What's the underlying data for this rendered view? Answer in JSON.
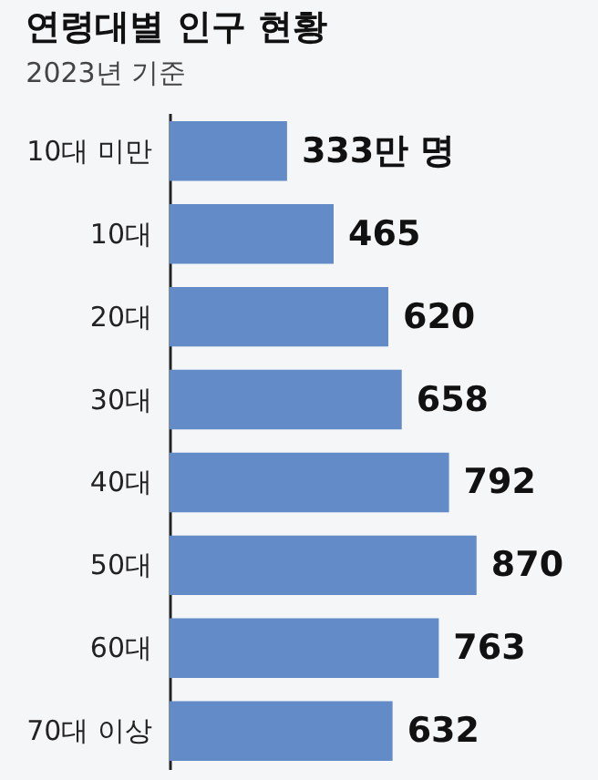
{
  "chart_data": {
    "type": "bar",
    "orientation": "horizontal",
    "title": "연령대별 인구 현황",
    "subtitle": "2023년 기준",
    "categories": [
      "10대 미만",
      "10대",
      "20대",
      "30대",
      "40대",
      "50대",
      "60대",
      "70대 이상"
    ],
    "values": [
      333,
      465,
      620,
      658,
      792,
      870,
      763,
      632
    ],
    "value_labels": [
      "333만 명",
      "465",
      "620",
      "658",
      "792",
      "870",
      "763",
      "632"
    ],
    "color": "#628bc7",
    "grid": false,
    "tick_labels": "y"
  }
}
